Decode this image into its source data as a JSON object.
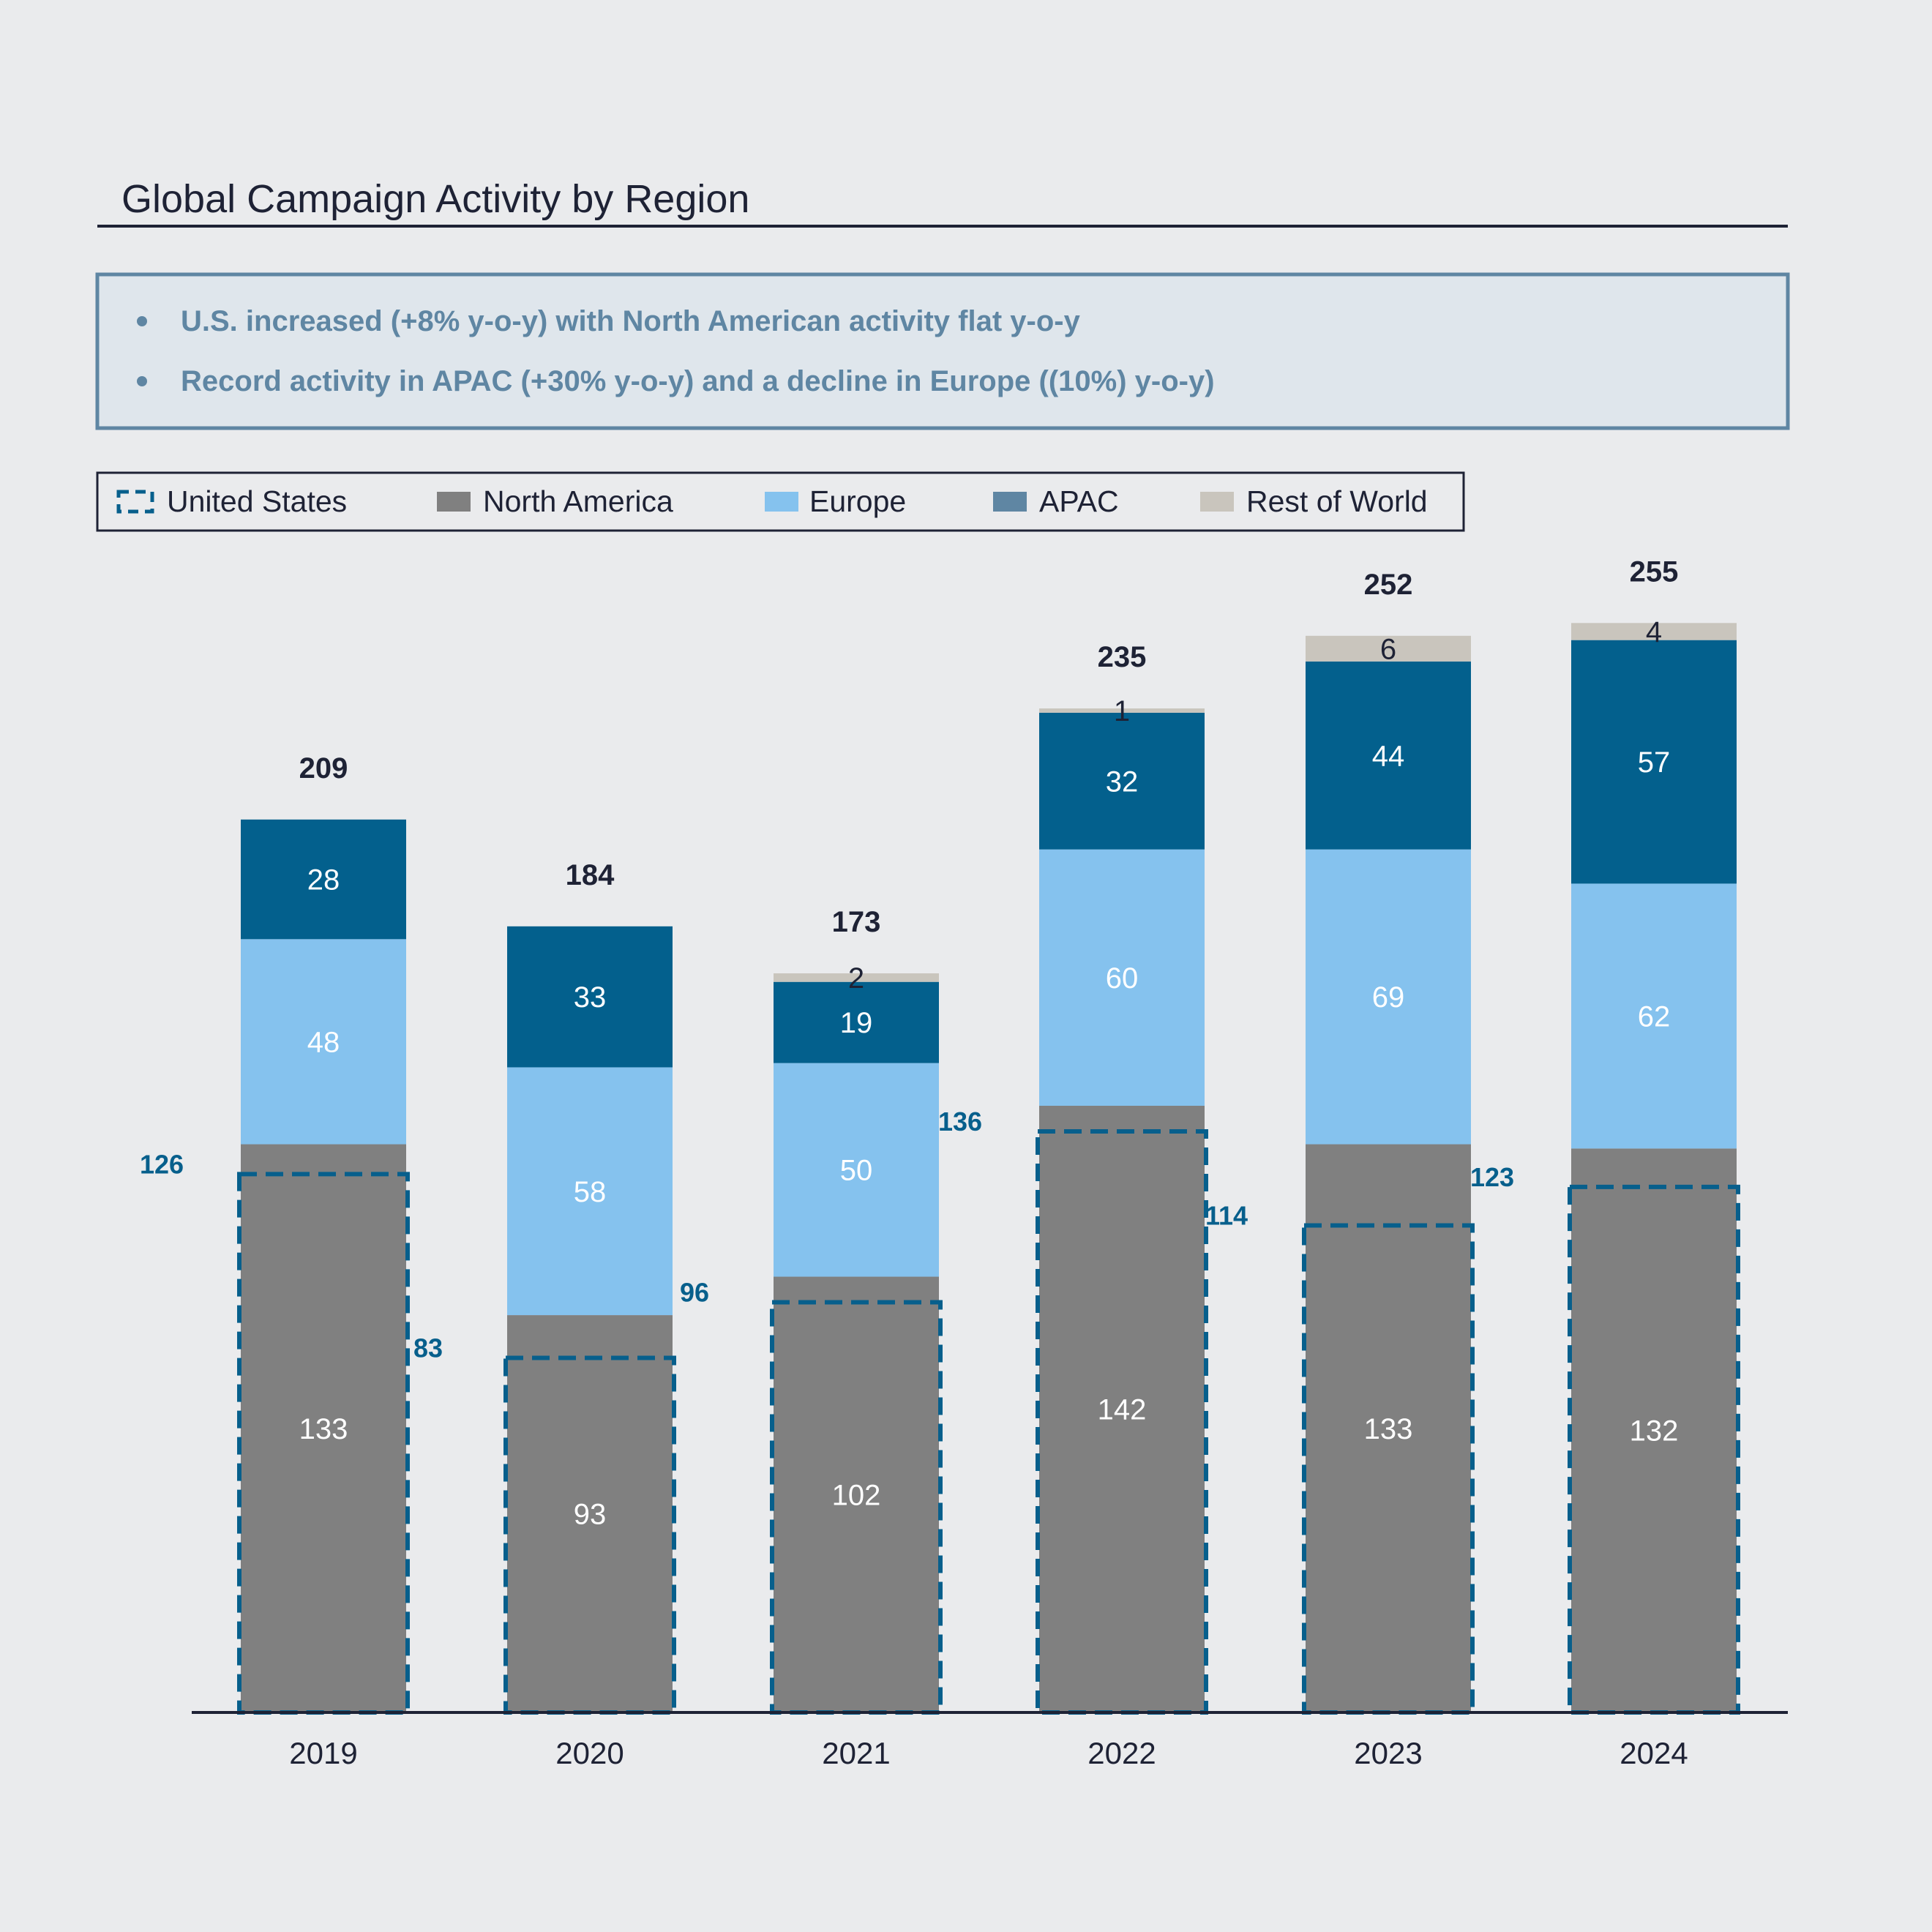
{
  "page": {
    "title": "Global Campaign Activity by Region",
    "bullets": [
      "U.S. increased (+8% y-o-y) with North American activity flat y-o-y",
      "Record activity in APAC (+30% y-o-y) and a decline in Europe ((10%) y-o-y)"
    ]
  },
  "colors": {
    "background": "#eaebed",
    "north_america": "#808080",
    "europe": "#85c2ee",
    "apac": "#03608d",
    "rest_of_world": "#c9c5bd",
    "united_states": "#075f8c",
    "callout_fill": "#dfe6ec",
    "callout_border": "#5f86a3",
    "text_dark": "#1e2235"
  },
  "chart_data": {
    "type": "bar",
    "stacked": true,
    "categories": [
      "2019",
      "2020",
      "2021",
      "2022",
      "2023",
      "2024"
    ],
    "series": [
      {
        "name": "North America",
        "values": [
          133,
          93,
          102,
          142,
          133,
          132
        ]
      },
      {
        "name": "Europe",
        "values": [
          48,
          58,
          50,
          60,
          69,
          62
        ]
      },
      {
        "name": "APAC",
        "values": [
          28,
          33,
          19,
          32,
          44,
          57
        ]
      },
      {
        "name": "Rest of World",
        "values": [
          0,
          0,
          2,
          1,
          6,
          4
        ]
      }
    ],
    "overlay_series": {
      "name": "United States",
      "style": "dashed-outline",
      "values": [
        126,
        83,
        96,
        136,
        114,
        123
      ]
    },
    "totals": [
      209,
      184,
      173,
      235,
      252,
      255
    ],
    "legend": [
      "United States",
      "North America",
      "Europe",
      "APAC",
      "Rest of World"
    ],
    "legend_position": "top-left",
    "grid": false,
    "y_axis_visible": false
  }
}
